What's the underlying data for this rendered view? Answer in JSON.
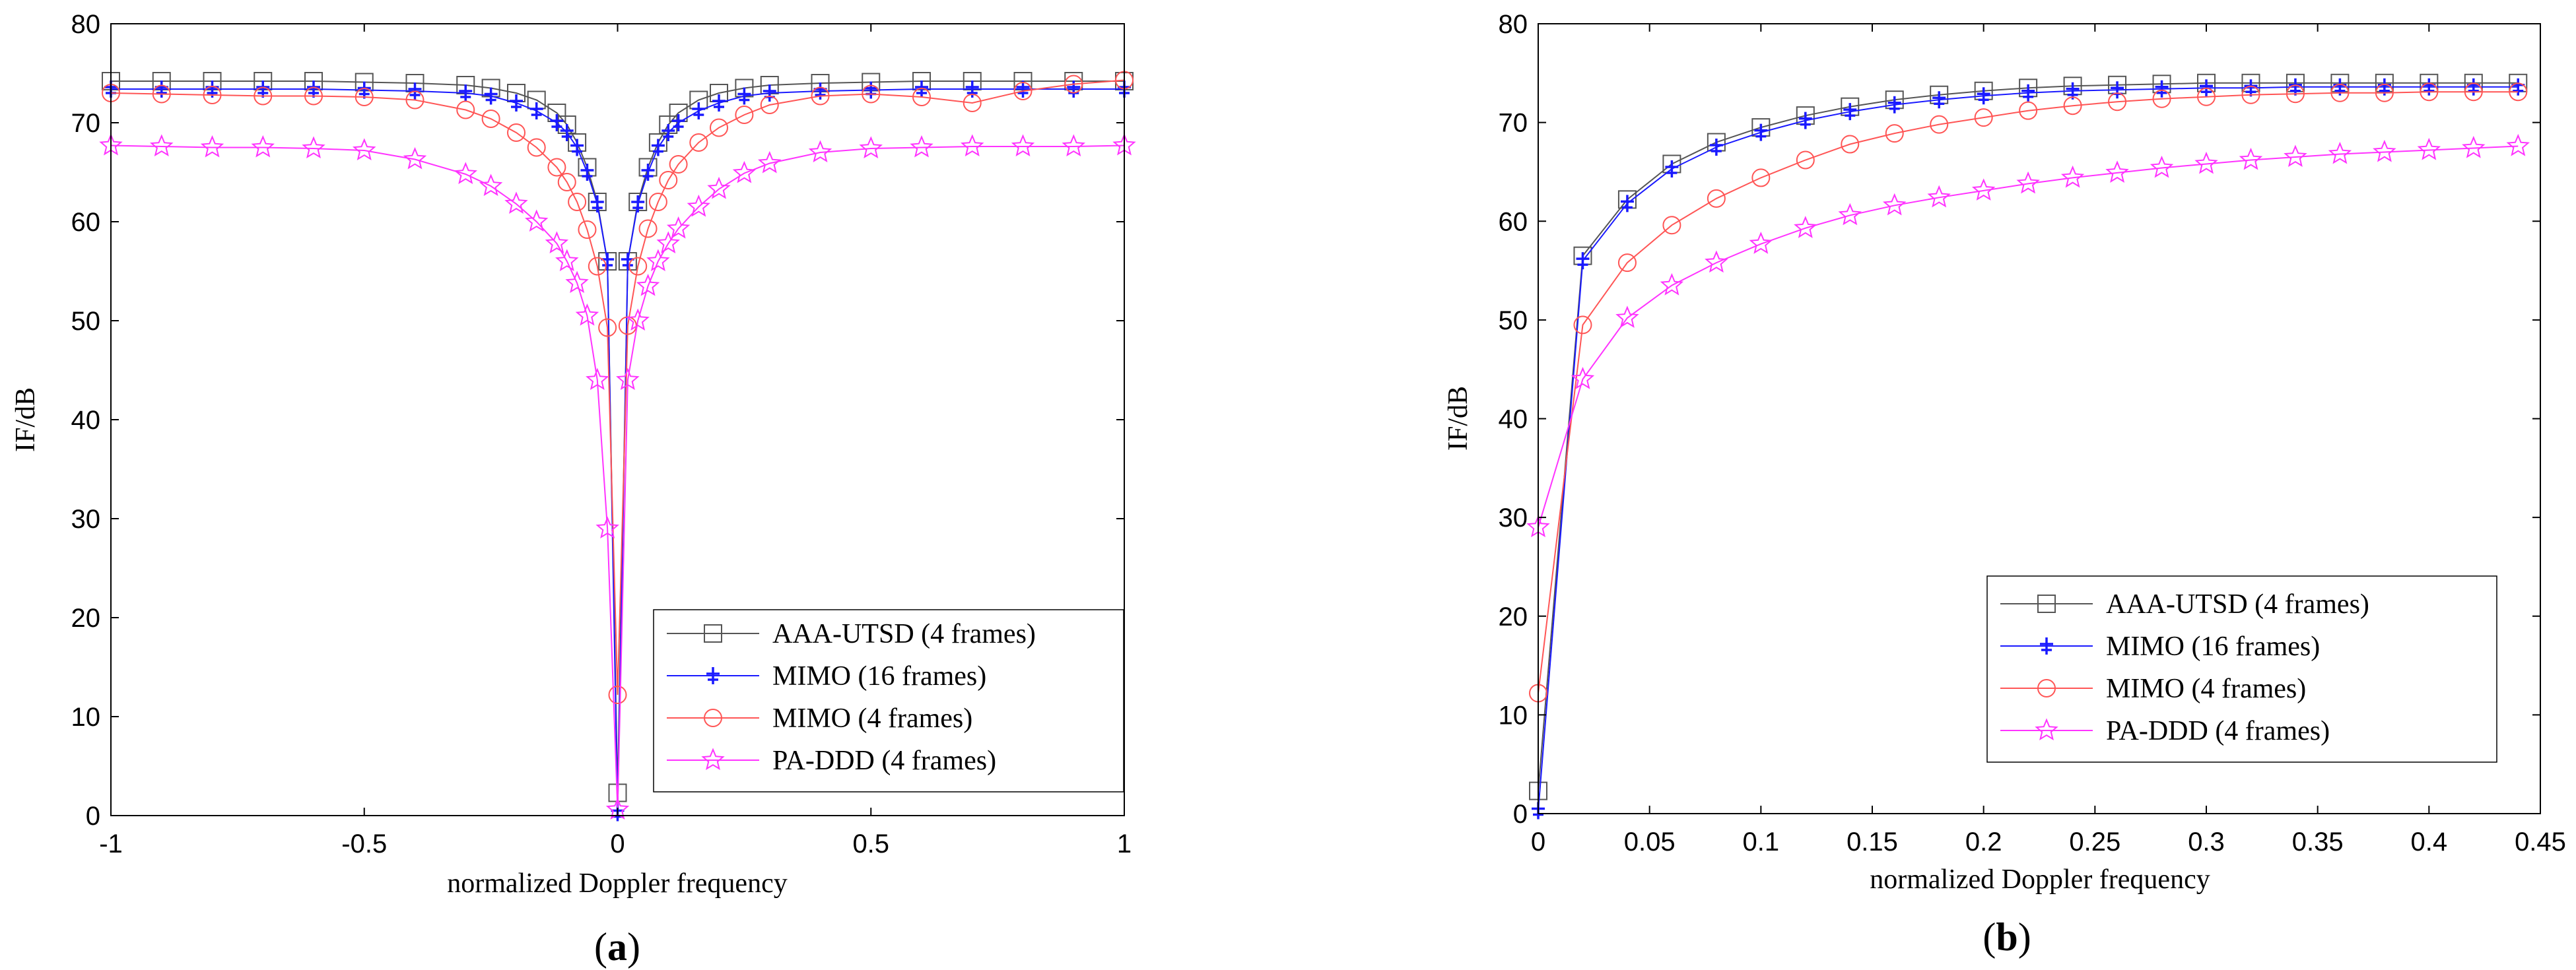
{
  "chart_data": [
    {
      "type": "line",
      "panel_label": "a",
      "title": "",
      "xlabel": "normalized Doppler frequency",
      "ylabel": "IF/dB",
      "xlim": [
        -1,
        1
      ],
      "ylim": [
        0,
        80
      ],
      "xticks": [
        -1,
        -0.5,
        0,
        0.5,
        1
      ],
      "xtick_labels": [
        "-1",
        "-0.5",
        "0",
        "0.5",
        "1"
      ],
      "yticks": [
        0,
        10,
        20,
        30,
        40,
        50,
        60,
        70,
        80
      ],
      "ytick_labels": [
        "0",
        "10",
        "20",
        "30",
        "40",
        "50",
        "60",
        "70",
        "80"
      ],
      "grid": false,
      "legend_position": "lower-right",
      "x": [
        -1,
        -0.9,
        -0.8,
        -0.7,
        -0.6,
        -0.5,
        -0.4,
        -0.3,
        -0.25,
        -0.2,
        -0.16,
        -0.12,
        -0.1,
        -0.08,
        -0.06,
        -0.04,
        -0.02,
        0,
        0.02,
        0.04,
        0.06,
        0.08,
        0.1,
        0.12,
        0.16,
        0.2,
        0.25,
        0.3,
        0.4,
        0.5,
        0.6,
        0.7,
        0.8,
        0.9,
        1
      ],
      "series": [
        {
          "name": "AAA-UTSD (4 frames)",
          "color": "#555555",
          "marker": "square",
          "values": [
            74.2,
            74.2,
            74.2,
            74.2,
            74.2,
            74.1,
            74.0,
            73.8,
            73.5,
            73.0,
            72.3,
            71.0,
            69.8,
            68.0,
            65.5,
            62.0,
            56.0,
            2.3,
            56.0,
            62.0,
            65.5,
            68.0,
            69.8,
            71.0,
            72.3,
            73.0,
            73.5,
            73.8,
            74.0,
            74.1,
            74.2,
            74.2,
            74.2,
            74.2,
            74.2
          ]
        },
        {
          "name": "MIMO (16 frames)",
          "color": "#1a1aff",
          "marker": "spike",
          "values": [
            73.4,
            73.4,
            73.4,
            73.4,
            73.4,
            73.3,
            73.2,
            73.0,
            72.7,
            72.0,
            71.2,
            70.0,
            69.0,
            67.5,
            65.0,
            61.8,
            56.0,
            0.3,
            56.0,
            61.8,
            65.0,
            67.5,
            69.0,
            70.0,
            71.2,
            72.0,
            72.7,
            73.0,
            73.2,
            73.3,
            73.4,
            73.4,
            73.4,
            73.4,
            73.4
          ]
        },
        {
          "name": "MIMO (4 frames)",
          "color": "#ff5555",
          "marker": "circle",
          "values": [
            73.0,
            72.9,
            72.8,
            72.7,
            72.7,
            72.6,
            72.3,
            71.3,
            70.4,
            69.0,
            67.5,
            65.5,
            64.0,
            62.0,
            59.2,
            55.5,
            49.3,
            12.2,
            49.5,
            55.5,
            59.3,
            62.0,
            64.2,
            65.8,
            68.0,
            69.5,
            70.8,
            71.8,
            72.7,
            72.9,
            72.6,
            72.0,
            73.2,
            73.9,
            74.3
          ]
        },
        {
          "name": "PA-DDD (4 frames)",
          "color": "#ff33ff",
          "marker": "star",
          "values": [
            67.7,
            67.6,
            67.5,
            67.5,
            67.4,
            67.2,
            66.3,
            64.8,
            63.6,
            61.8,
            60.0,
            57.8,
            56.0,
            53.8,
            50.5,
            44.0,
            29.0,
            0.6,
            44.0,
            50.0,
            53.5,
            56.0,
            57.8,
            59.3,
            61.5,
            63.3,
            64.9,
            65.9,
            67.0,
            67.4,
            67.5,
            67.6,
            67.6,
            67.6,
            67.7
          ]
        }
      ]
    },
    {
      "type": "line",
      "panel_label": "b",
      "title": "",
      "xlabel": "normalized Doppler frequency",
      "ylabel": "IF/dB",
      "xlim": [
        0,
        0.45
      ],
      "ylim": [
        0,
        80
      ],
      "xticks": [
        0,
        0.05,
        0.1,
        0.15,
        0.2,
        0.25,
        0.3,
        0.35,
        0.4,
        0.45
      ],
      "xtick_labels": [
        "0",
        "0.05",
        "0.1",
        "0.15",
        "0.2",
        "0.25",
        "0.3",
        "0.35",
        "0.4",
        "0.45"
      ],
      "yticks": [
        0,
        10,
        20,
        30,
        40,
        50,
        60,
        70,
        80
      ],
      "ytick_labels": [
        "0",
        "10",
        "20",
        "30",
        "40",
        "50",
        "60",
        "70",
        "80"
      ],
      "grid": false,
      "legend_position": "lower-right",
      "x": [
        0,
        0.02,
        0.04,
        0.06,
        0.08,
        0.1,
        0.12,
        0.14,
        0.16,
        0.18,
        0.2,
        0.22,
        0.24,
        0.26,
        0.28,
        0.3,
        0.32,
        0.34,
        0.36,
        0.38,
        0.4,
        0.42,
        0.44
      ],
      "series": [
        {
          "name": "AAA-UTSD (4 frames)",
          "color": "#555555",
          "marker": "square",
          "values": [
            2.3,
            56.5,
            62.2,
            65.8,
            68.0,
            69.5,
            70.7,
            71.6,
            72.3,
            72.8,
            73.2,
            73.5,
            73.7,
            73.8,
            73.9,
            74.0,
            74.0,
            74.0,
            74.0,
            74.0,
            74.0,
            74.0,
            74.0
          ]
        },
        {
          "name": "MIMO (16 frames)",
          "color": "#1a1aff",
          "marker": "spike",
          "values": [
            0.3,
            56.0,
            61.8,
            65.3,
            67.5,
            69.0,
            70.2,
            71.1,
            71.8,
            72.3,
            72.7,
            73.0,
            73.2,
            73.3,
            73.4,
            73.5,
            73.5,
            73.6,
            73.6,
            73.6,
            73.6,
            73.6,
            73.6
          ]
        },
        {
          "name": "MIMO (4 frames)",
          "color": "#ff5555",
          "marker": "circle",
          "values": [
            12.2,
            49.5,
            55.8,
            59.6,
            62.3,
            64.4,
            66.2,
            67.8,
            68.9,
            69.8,
            70.5,
            71.2,
            71.7,
            72.1,
            72.4,
            72.6,
            72.8,
            72.9,
            73.0,
            73.0,
            73.1,
            73.1,
            73.1
          ]
        },
        {
          "name": "PA-DDD (4 frames)",
          "color": "#ff33ff",
          "marker": "star",
          "values": [
            29.0,
            44.0,
            50.2,
            53.5,
            55.8,
            57.7,
            59.3,
            60.6,
            61.6,
            62.4,
            63.1,
            63.8,
            64.4,
            64.9,
            65.4,
            65.8,
            66.2,
            66.5,
            66.8,
            67.0,
            67.2,
            67.4,
            67.6
          ]
        }
      ]
    }
  ]
}
